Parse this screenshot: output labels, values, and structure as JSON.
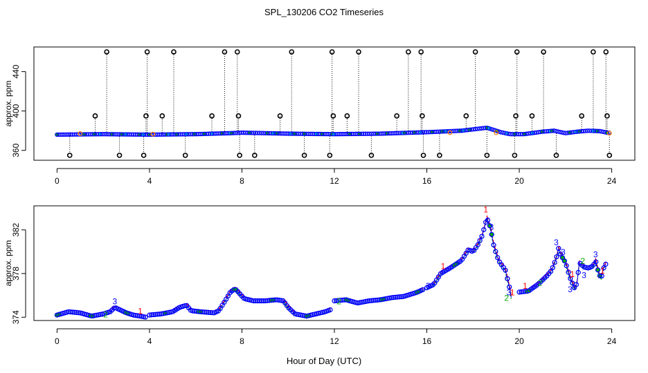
{
  "figure": {
    "title": "SPL_130206  CO2 Timeseries",
    "xlabel": "Hour of Day (UTC)"
  },
  "chart_data": [
    {
      "type": "scatter",
      "name": "full-range",
      "ylabel": "approx. ppm",
      "xlim": [
        -1,
        25
      ],
      "ylim": [
        350,
        465
      ],
      "xticks": [
        0,
        4,
        8,
        12,
        16,
        20,
        24
      ],
      "yticks": [
        360,
        400,
        440
      ],
      "baseline": [
        [
          0,
          376
        ],
        [
          2,
          376.5
        ],
        [
          4,
          376
        ],
        [
          6,
          376.5
        ],
        [
          7.5,
          377.5
        ],
        [
          8,
          378
        ],
        [
          10,
          377
        ],
        [
          12,
          376.5
        ],
        [
          14,
          377
        ],
        [
          16,
          378.5
        ],
        [
          17.5,
          380
        ],
        [
          18.6,
          383
        ],
        [
          19.2,
          378.5
        ],
        [
          19.6,
          376.5
        ],
        [
          20.2,
          376.5
        ],
        [
          21,
          379
        ],
        [
          21.5,
          380
        ],
        [
          22,
          377.5
        ],
        [
          22.5,
          379
        ],
        [
          23,
          380
        ],
        [
          23.5,
          379.5
        ],
        [
          23.8,
          378
        ]
      ],
      "spikes_high": [
        2.15,
        3.9,
        5.05,
        7.25,
        7.8,
        10.15,
        11.9,
        13.05,
        15.2,
        15.75,
        18.1,
        19.9,
        21.05,
        23.2,
        23.75
      ],
      "spikes_mid": [
        1.65,
        3.85,
        4.55,
        6.7,
        7.85,
        9.65,
        11.95,
        12.55,
        14.7,
        15.8,
        17.7,
        19.85,
        20.55,
        22.7,
        23.8
      ],
      "spikes_low": [
        0.55,
        2.7,
        3.75,
        5.55,
        7.9,
        8.55,
        10.7,
        11.8,
        13.6,
        15.85,
        16.55,
        18.6,
        19.8,
        21.6,
        23.9
      ],
      "spike_values": {
        "high": 460,
        "mid": 395,
        "low": 355
      },
      "flagged_points": [
        [
          1,
          377
        ],
        [
          4.15,
          376.5
        ],
        [
          17,
          378
        ],
        [
          19,
          378
        ],
        [
          23.9,
          377.5
        ]
      ]
    },
    {
      "type": "line",
      "name": "zoomed",
      "ylabel": "approx. ppm",
      "xlim": [
        -1,
        25
      ],
      "ylim": [
        373.7,
        384.2
      ],
      "xticks": [
        0,
        4,
        8,
        12,
        16,
        20,
        24
      ],
      "yticks": [
        374,
        378,
        382
      ],
      "series": [
        {
          "name": "trace",
          "points": [
            [
              0,
              374.2
            ],
            [
              0.5,
              374.5
            ],
            [
              1,
              374.4
            ],
            [
              1.5,
              374.1
            ],
            [
              2,
              374.3
            ],
            [
              2.3,
              374.5
            ],
            [
              2.5,
              374.9
            ],
            [
              2.8,
              374.6
            ],
            [
              3,
              374.4
            ],
            [
              3.3,
              374.2
            ],
            [
              3.6,
              374.1
            ],
            [
              3.85,
              374.0
            ]
          ],
          "gap_after": true
        },
        {
          "name": "trace",
          "points": [
            [
              4,
              374.2
            ],
            [
              4.5,
              374.3
            ],
            [
              5,
              374.5
            ],
            [
              5.3,
              374.9
            ],
            [
              5.6,
              375.1
            ],
            [
              5.8,
              374.6
            ],
            [
              6.2,
              374.5
            ],
            [
              6.8,
              374.4
            ],
            [
              7,
              374.6
            ],
            [
              7.3,
              375.6
            ],
            [
              7.5,
              376.3
            ],
            [
              7.7,
              376.6
            ],
            [
              7.8,
              376.4
            ],
            [
              8.1,
              375.7
            ],
            [
              8.5,
              375.5
            ],
            [
              9,
              375.5
            ],
            [
              9.5,
              375.6
            ],
            [
              9.8,
              375.5
            ],
            [
              10,
              374.9
            ],
            [
              10.3,
              374.3
            ],
            [
              10.8,
              374.1
            ],
            [
              11.2,
              374.3
            ],
            [
              11.6,
              374.5
            ],
            [
              11.85,
              374.7
            ]
          ],
          "gap_after": true
        },
        {
          "name": "trace",
          "points": [
            [
              12,
              375.5
            ],
            [
              12.5,
              375.6
            ],
            [
              13,
              375.3
            ],
            [
              13.5,
              375.5
            ],
            [
              14,
              375.6
            ],
            [
              14.5,
              375.8
            ],
            [
              15,
              375.9
            ],
            [
              15.6,
              376.3
            ],
            [
              15.9,
              376.6
            ]
          ],
          "gap_after": true
        },
        {
          "name": "trace",
          "points": [
            [
              16,
              376.7
            ],
            [
              16.3,
              377
            ],
            [
              16.6,
              378
            ],
            [
              17,
              378.5
            ],
            [
              17.5,
              379.2
            ],
            [
              17.8,
              380.2
            ],
            [
              18,
              380.0
            ],
            [
              18.2,
              380.6
            ],
            [
              18.4,
              381.5
            ],
            [
              18.6,
              383.1
            ],
            [
              18.75,
              382.2
            ],
            [
              18.9,
              380.5
            ],
            [
              19.1,
              379.2
            ],
            [
              19.4,
              378.3
            ],
            [
              19.6,
              376.5
            ],
            [
              19.65,
              375.8
            ]
          ],
          "gap_after": true
        },
        {
          "name": "trace",
          "points": [
            [
              20,
              376.3
            ],
            [
              20.4,
              376.4
            ],
            [
              20.8,
              377
            ],
            [
              21.2,
              377.8
            ],
            [
              21.4,
              378.3
            ],
            [
              21.6,
              379.4
            ],
            [
              21.7,
              380.3
            ],
            [
              21.8,
              379.7
            ],
            [
              22,
              379.0
            ],
            [
              22.2,
              377.6
            ],
            [
              22.4,
              376.6
            ],
            [
              22.5,
              377.2
            ],
            [
              22.6,
              379.0
            ],
            [
              22.8,
              378.6
            ],
            [
              23,
              378.5
            ],
            [
              23.2,
              378.7
            ],
            [
              23.3,
              379.2
            ],
            [
              23.45,
              377.9
            ],
            [
              23.55,
              377.6
            ],
            [
              23.65,
              378.5
            ],
            [
              23.75,
              378.9
            ]
          ],
          "gap_after": false
        }
      ],
      "labels": [
        {
          "text": "1",
          "x": 18.55,
          "y": 383.6,
          "color": "#ff0000"
        },
        {
          "text": "3",
          "x": 2.5,
          "y": 375.2,
          "color": "#0000ff"
        },
        {
          "text": "2",
          "x": 2.1,
          "y": 374.0,
          "color": "#00aa00"
        },
        {
          "text": "1",
          "x": 3.6,
          "y": 374.3,
          "color": "#ff0000"
        },
        {
          "text": "3",
          "x": 16.05,
          "y": 376.6,
          "color": "#0000ff"
        },
        {
          "text": "2",
          "x": 12.2,
          "y": 375.2,
          "color": "#00aa00"
        },
        {
          "text": "1",
          "x": 16.7,
          "y": 378.4,
          "color": "#ff0000"
        },
        {
          "text": "3",
          "x": 18.8,
          "y": 382.0,
          "color": "#0000ff"
        },
        {
          "text": "1",
          "x": 19.7,
          "y": 376.0,
          "color": "#ff0000"
        },
        {
          "text": "3",
          "x": 19.55,
          "y": 376.0,
          "color": "#0000ff"
        },
        {
          "text": "2",
          "x": 19.45,
          "y": 375.5,
          "color": "#00aa00"
        },
        {
          "text": "1",
          "x": 20.25,
          "y": 376.6,
          "color": "#ff0000"
        },
        {
          "text": "2",
          "x": 20.9,
          "y": 376.9,
          "color": "#00aa00"
        },
        {
          "text": "3",
          "x": 21.6,
          "y": 380.6,
          "color": "#0000ff"
        },
        {
          "text": "3",
          "x": 21.9,
          "y": 379.7,
          "color": "#0000ff"
        },
        {
          "text": "1",
          "x": 22.3,
          "y": 377.7,
          "color": "#ff0000"
        },
        {
          "text": "3",
          "x": 22.2,
          "y": 376.3,
          "color": "#0000ff"
        },
        {
          "text": "2",
          "x": 22.75,
          "y": 378.9,
          "color": "#00aa00"
        },
        {
          "text": "3",
          "x": 22.8,
          "y": 377.6,
          "color": "#0000ff"
        },
        {
          "text": "3",
          "x": 23.3,
          "y": 379.5,
          "color": "#0000ff"
        },
        {
          "text": "1",
          "x": 23.6,
          "y": 378.0,
          "color": "#ff0000"
        }
      ]
    }
  ],
  "colors": {
    "marker_stroke": "#0000ff",
    "marker_fill_green": "#00aa00",
    "marker_fill_cyan": "#00cccc",
    "flag_orange": "#ff8000",
    "spike_line": "#000000"
  }
}
